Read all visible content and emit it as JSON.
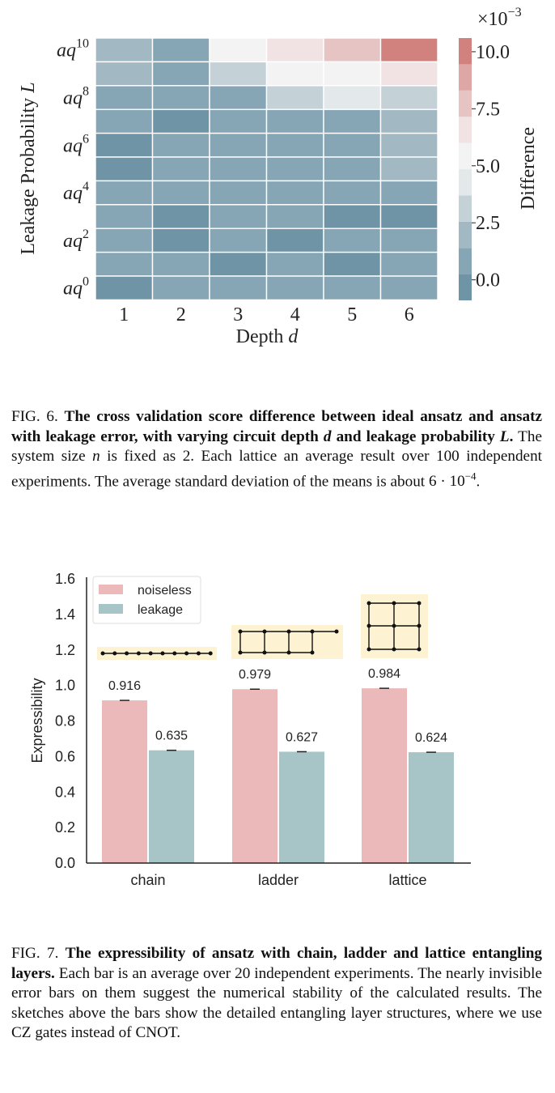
{
  "figure6": {
    "chart_data": {
      "type": "heatmap",
      "xlabel_text": "Depth",
      "xlabel_var": "d",
      "ylabel_text": "Leakage Probability",
      "ylabel_var": "L",
      "x_ticks": [
        "1",
        "2",
        "3",
        "4",
        "5",
        "6"
      ],
      "y_ticks": [
        {
          "base": "aq",
          "exp": "10",
          "row": 0
        },
        {
          "base": "aq",
          "exp": "8",
          "row": 2
        },
        {
          "base": "aq",
          "exp": "6",
          "row": 4
        },
        {
          "base": "aq",
          "exp": "4",
          "row": 6
        },
        {
          "base": "aq",
          "exp": "2",
          "row": 8
        },
        {
          "base": "aq",
          "exp": "0",
          "row": 10
        }
      ],
      "values": [
        [
          2.2,
          0.6,
          4.9,
          6.0,
          7.6,
          9.9
        ],
        [
          1.5,
          0.6,
          2.6,
          4.9,
          5.8,
          6.0
        ],
        [
          0.9,
          0.6,
          1.4,
          2.6,
          4.8,
          2.6
        ],
        [
          0.6,
          -0.3,
          1.2,
          1.4,
          1.3,
          1.8
        ],
        [
          -0.3,
          0.8,
          0.7,
          0.9,
          1.2,
          1.9
        ],
        [
          -0.5,
          0.8,
          0.8,
          0.7,
          0.7,
          1.5
        ],
        [
          0.6,
          0.6,
          0.6,
          0.6,
          0.6,
          0.6
        ],
        [
          0.6,
          -0.2,
          0.6,
          0.6,
          -0.3,
          -0.1
        ],
        [
          0.7,
          -0.2,
          0.6,
          -0.3,
          0.6,
          0.6
        ],
        [
          0.6,
          0.5,
          -0.3,
          0.6,
          -0.4,
          0.8
        ],
        [
          -0.3,
          0.6,
          0.6,
          0.6,
          0.6,
          0.6
        ]
      ],
      "colorbar": {
        "label": "Difference",
        "multiplier": "×10",
        "multiplier_exp": "−3",
        "ticks": [
          "10.0",
          "7.5",
          "5.0",
          "2.5",
          "0.0"
        ],
        "tick_values": [
          10.0,
          7.5,
          5.0,
          2.5,
          0.0
        ],
        "range": [
          -0.9,
          10.6
        ],
        "colors": [
          "#6e94a6",
          "#87a6b5",
          "#a2b9c4",
          "#c4d2d8",
          "#e3e9eb",
          "#f3f3f3",
          "#f1e3e3",
          "#e6c4c3",
          "#dea6a4",
          "#d2827e"
        ]
      }
    },
    "caption": {
      "label": "FIG. 6.",
      "bold": "The cross validation score difference between ideal ansatz and ansatz with leakage error, with varying circuit depth",
      "bold_var1": "d",
      "bold_mid": "and leakage probability",
      "bold_var2": "L",
      "bold_end": ".",
      "text1": "The system size",
      "var_n": "n",
      "text2": "is fixed as 2. Each lattice an average result over 100 independent experiments. The average standard deviation of the means is about",
      "value_base": "6 · 10",
      "value_exp": "−4",
      "text_end": "."
    }
  },
  "figure7": {
    "chart_data": {
      "type": "bar",
      "categories": [
        "chain",
        "ladder",
        "lattice"
      ],
      "series": [
        {
          "name": "noiseless",
          "values": [
            0.916,
            0.979,
            0.984
          ],
          "color": "#ebb9b9"
        },
        {
          "name": "leakage",
          "values": [
            0.635,
            0.627,
            0.624
          ],
          "color": "#a7c5c7"
        }
      ],
      "value_labels": [
        [
          "0.916",
          "0.979",
          "0.984"
        ],
        [
          "0.635",
          "0.627",
          "0.624"
        ]
      ],
      "ylabel": "Expressibility",
      "ylim": [
        0,
        1.6
      ],
      "yticks": [
        "0.0",
        "0.2",
        "0.4",
        "0.6",
        "0.8",
        "1.0",
        "1.2",
        "1.4",
        "1.6"
      ],
      "ytick_values": [
        0,
        0.2,
        0.4,
        0.6,
        0.8,
        1.0,
        1.2,
        1.4,
        1.6
      ],
      "legend_position": "top-left",
      "inset_background": "#fdf3d3"
    },
    "caption": {
      "label": "FIG. 7.",
      "bold": "The expressibility of ansatz with chain, ladder and lattice entangling layers.",
      "text": "Each bar is an average over 20 independent experiments. The nearly invisible error bars on them suggest the numerical stability of the calculated results. The sketches above the bars show the detailed entangling layer structures, where we use CZ gates instead of CNOT."
    }
  }
}
